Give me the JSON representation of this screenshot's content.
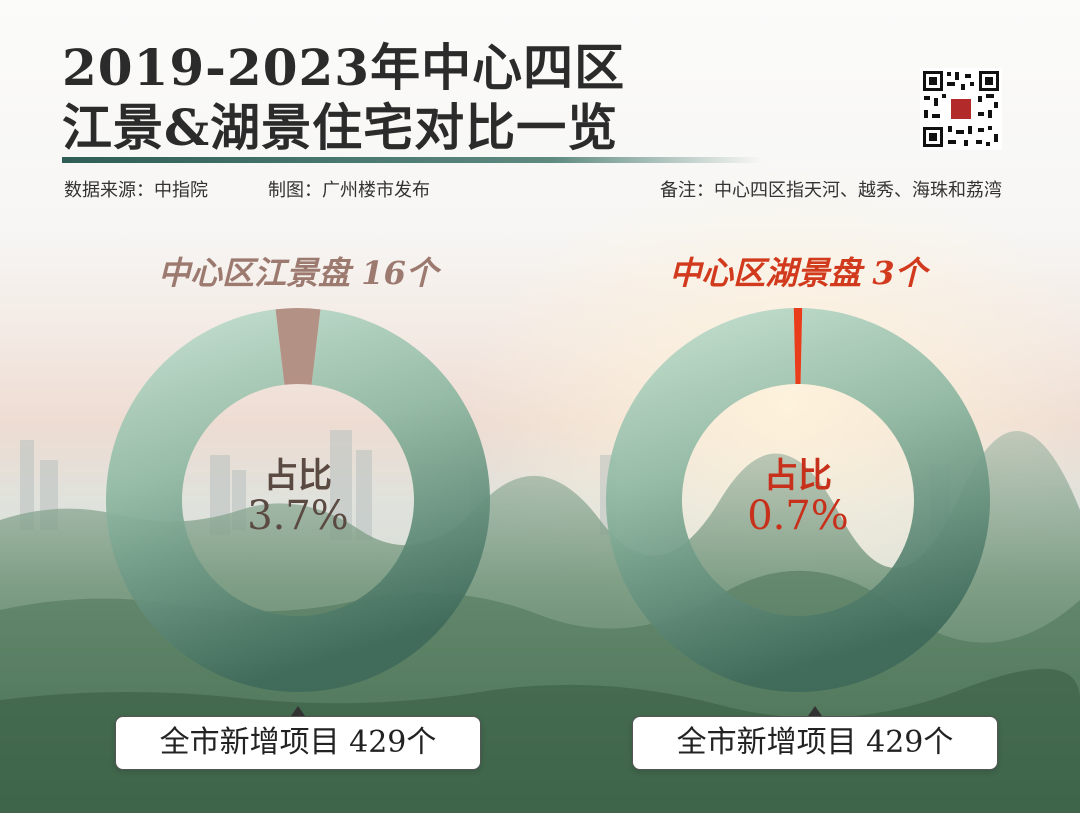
{
  "title": {
    "line1": "2019-2023年中心四区",
    "line2": "江景&湖景住宅对比一览"
  },
  "meta": {
    "source": "数据来源：中指院",
    "chart_by": "制图：广州楼市发布",
    "note": "备注：中心四区指天河、越秀、海珠和荔湾"
  },
  "colors": {
    "ring_light": "#c6e2d3",
    "ring_dark": "#3f6a5a",
    "highlight_river": "#b08c80",
    "highlight_lake": "#e8320f",
    "title_river": "#9c7a70",
    "title_lake": "#d23a1e"
  },
  "chart_data": [
    {
      "type": "pie",
      "title": "中心区江景盘 16个",
      "center_label": "占比",
      "center_value": "3.7%",
      "total_label": "全市新增项目 429个",
      "values": [
        16,
        413
      ],
      "total": 429,
      "highlight_percent": 3.7
    },
    {
      "type": "pie",
      "title": "中心区湖景盘 3个",
      "center_label": "占比",
      "center_value": "0.7%",
      "total_label": "全市新增项目 429个",
      "values": [
        3,
        426
      ],
      "total": 429,
      "highlight_percent": 0.7
    }
  ]
}
